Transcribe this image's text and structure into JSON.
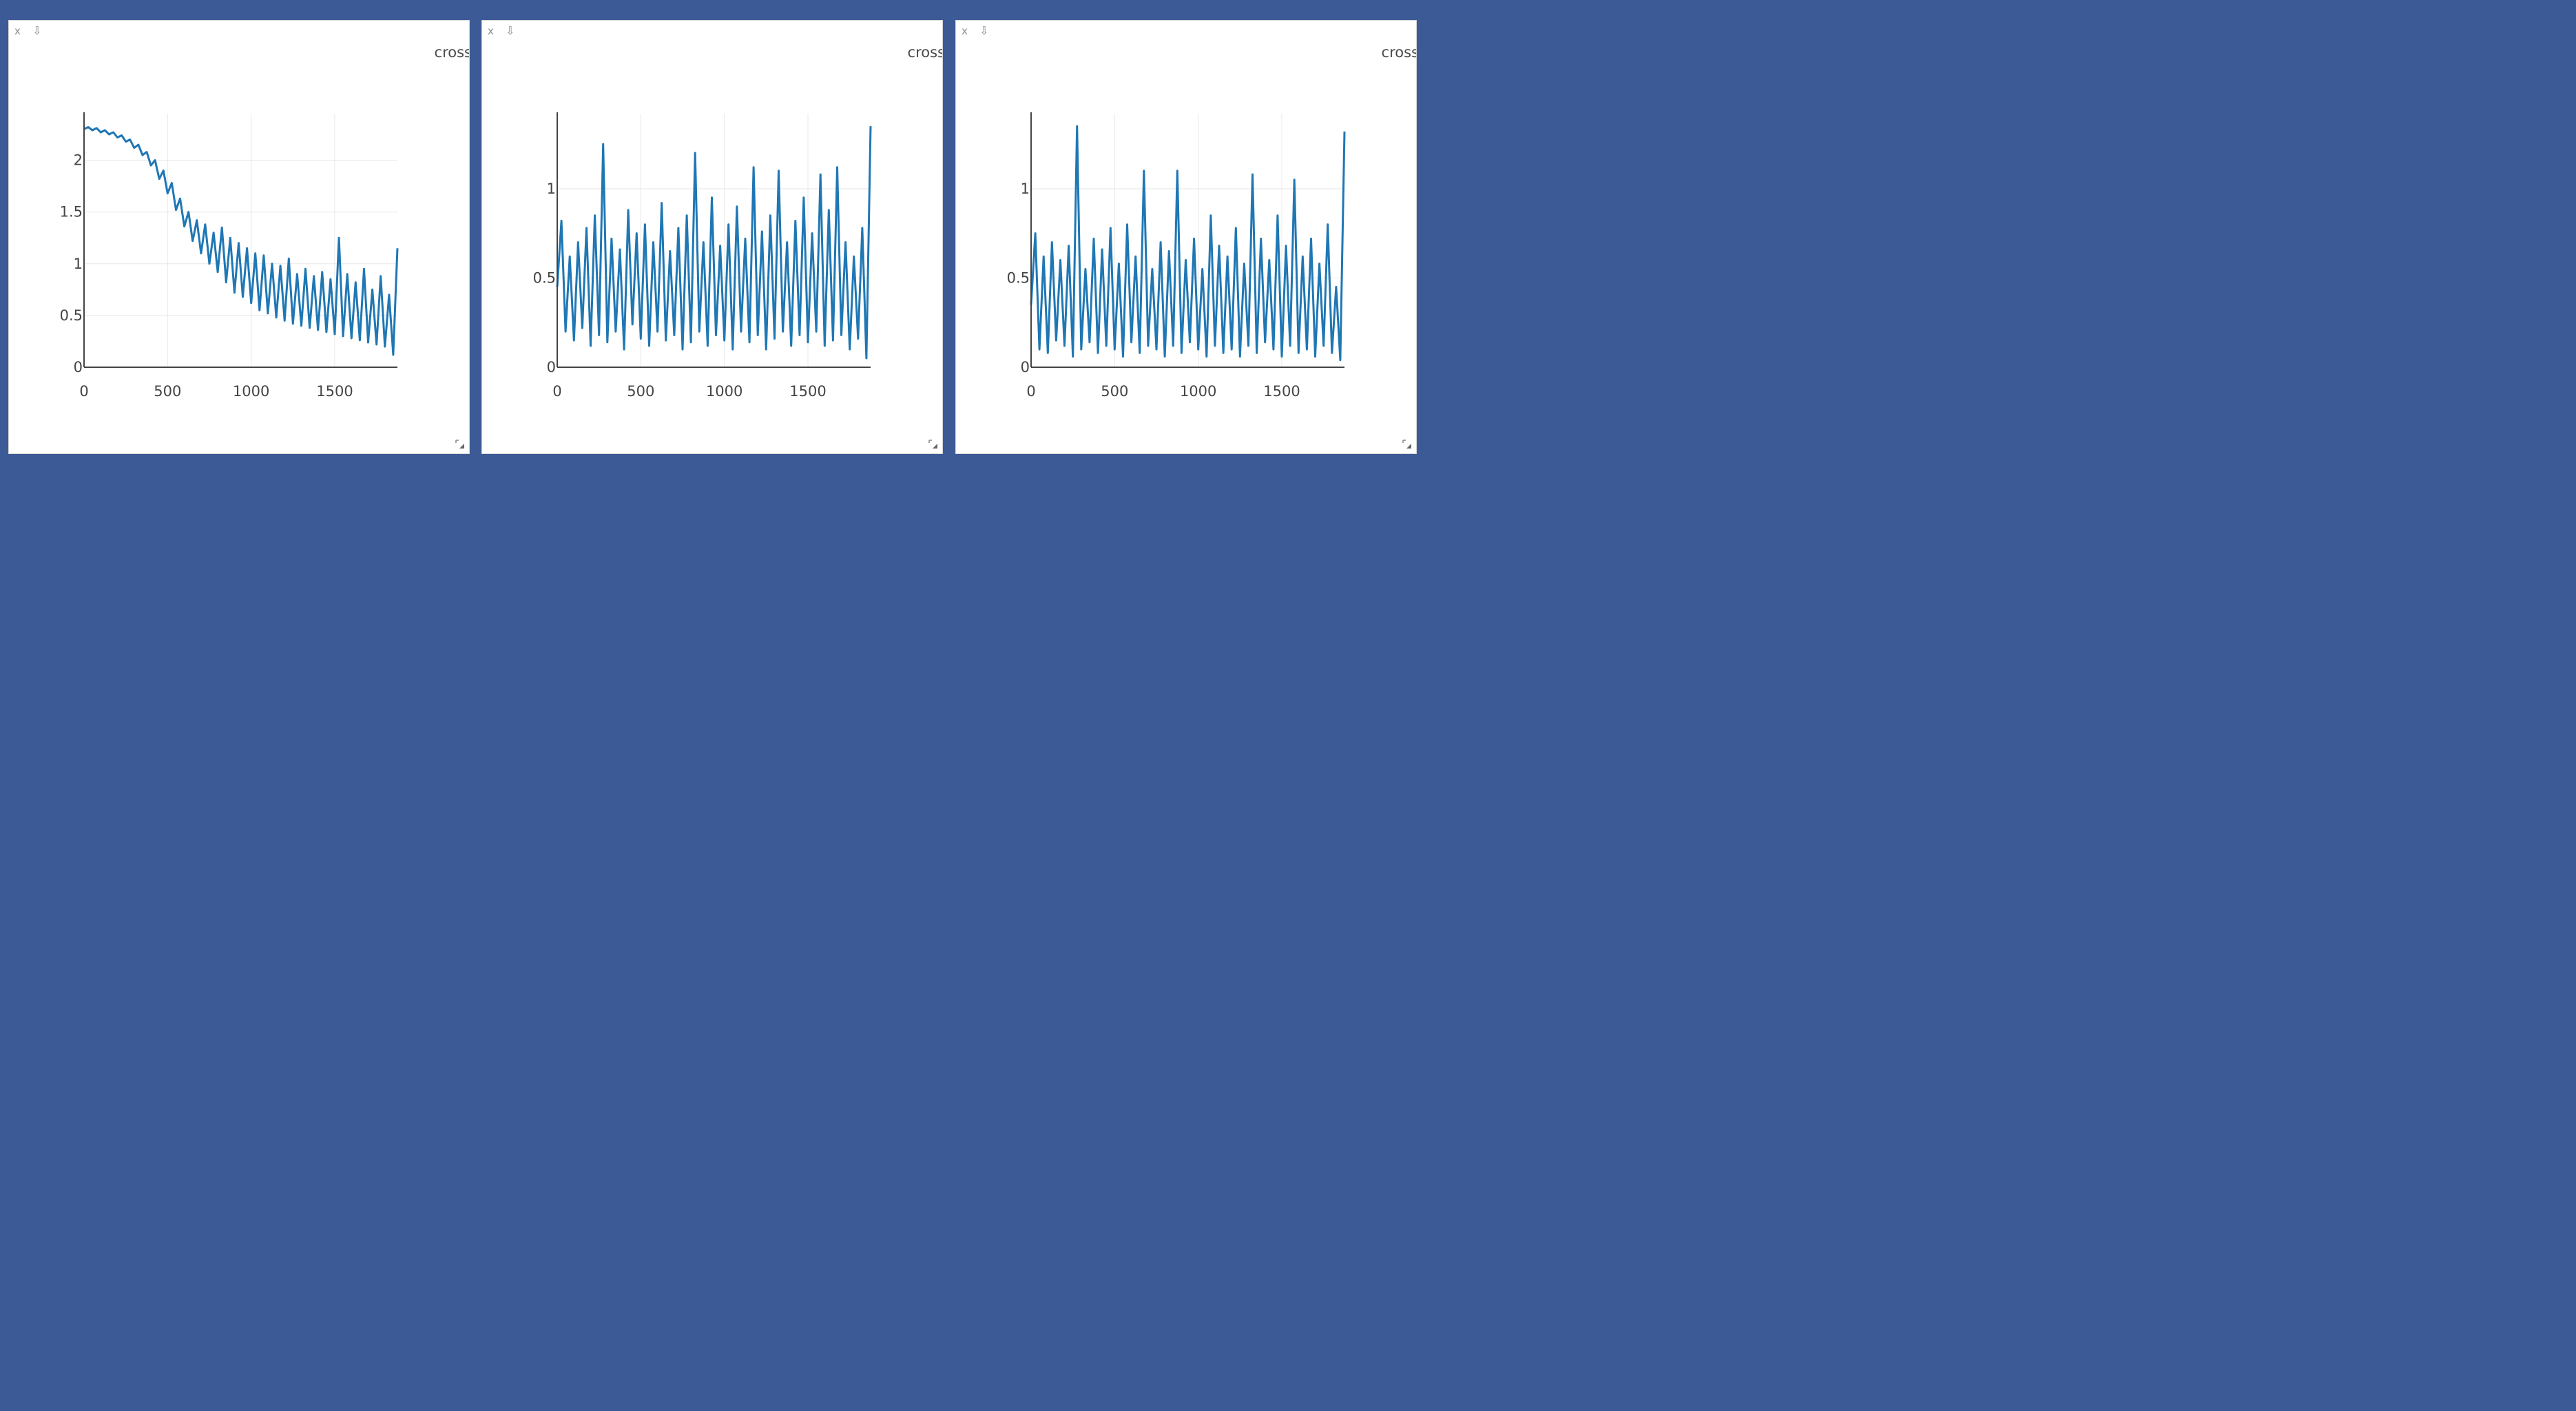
{
  "panes": [
    {
      "title": "cross",
      "close_icon": "close-icon",
      "download_icon": "download-icon",
      "resize_icon": "resize-handle-icon",
      "chart_data": {
        "type": "line",
        "x_range": [
          0,
          1875
        ],
        "ylim": [
          0,
          2.45
        ],
        "x_ticks": [
          0,
          500,
          1000,
          1500
        ],
        "x_tick_labels": [
          "0",
          "500",
          "1000",
          "1500"
        ],
        "y_ticks": [
          0,
          0.5,
          1,
          1.5,
          2
        ],
        "y_tick_labels": [
          "0",
          "0.5",
          "1",
          "1.5",
          "2"
        ],
        "grid": true,
        "line_color": "#1f77b4",
        "series": [
          {
            "x": [
              0,
              25,
              50,
              75,
              100,
              125,
              150,
              175,
              200,
              225,
              250,
              275,
              300,
              325,
              350,
              375,
              400,
              425,
              450,
              475,
              500,
              525,
              550,
              575,
              600,
              625,
              650,
              675,
              700,
              725,
              750,
              775,
              800,
              825,
              850,
              875,
              900,
              925,
              950,
              975,
              1000,
              1025,
              1050,
              1075,
              1100,
              1125,
              1150,
              1175,
              1200,
              1225,
              1250,
              1275,
              1300,
              1325,
              1350,
              1375,
              1400,
              1425,
              1450,
              1475,
              1500,
              1525,
              1550,
              1575,
              1600,
              1625,
              1650,
              1675,
              1700,
              1725,
              1750,
              1775,
              1800,
              1825,
              1850,
              1875
            ],
            "y": [
              2.3,
              2.32,
              2.29,
              2.31,
              2.27,
              2.29,
              2.25,
              2.27,
              2.22,
              2.24,
              2.18,
              2.2,
              2.12,
              2.15,
              2.05,
              2.08,
              1.95,
              2.0,
              1.82,
              1.9,
              1.68,
              1.78,
              1.52,
              1.63,
              1.36,
              1.5,
              1.22,
              1.42,
              1.1,
              1.38,
              1.0,
              1.3,
              0.92,
              1.35,
              0.82,
              1.25,
              0.72,
              1.2,
              0.68,
              1.15,
              0.62,
              1.1,
              0.55,
              1.08,
              0.52,
              1.0,
              0.48,
              0.98,
              0.45,
              1.05,
              0.42,
              0.9,
              0.4,
              0.95,
              0.38,
              0.88,
              0.36,
              0.92,
              0.34,
              0.85,
              0.32,
              1.25,
              0.3,
              0.9,
              0.28,
              0.82,
              0.26,
              0.95,
              0.24,
              0.75,
              0.22,
              0.88,
              0.2,
              0.7,
              0.12,
              1.15
            ]
          }
        ]
      }
    },
    {
      "title": "cross",
      "close_icon": "close-icon",
      "download_icon": "download-icon",
      "resize_icon": "resize-handle-icon",
      "chart_data": {
        "type": "line",
        "x_range": [
          0,
          1875
        ],
        "ylim": [
          0,
          1.42
        ],
        "x_ticks": [
          0,
          500,
          1000,
          1500
        ],
        "x_tick_labels": [
          "0",
          "500",
          "1000",
          "1500"
        ],
        "y_ticks": [
          0,
          0.5,
          1
        ],
        "y_tick_labels": [
          "0",
          "0.5",
          "1"
        ],
        "grid": true,
        "line_color": "#1f77b4",
        "series": [
          {
            "x": [
              0,
              25,
              50,
              75,
              100,
              125,
              150,
              175,
              200,
              225,
              250,
              275,
              300,
              325,
              350,
              375,
              400,
              425,
              450,
              475,
              500,
              525,
              550,
              575,
              600,
              625,
              650,
              675,
              700,
              725,
              750,
              775,
              800,
              825,
              850,
              875,
              900,
              925,
              950,
              975,
              1000,
              1025,
              1050,
              1075,
              1100,
              1125,
              1150,
              1175,
              1200,
              1225,
              1250,
              1275,
              1300,
              1325,
              1350,
              1375,
              1400,
              1425,
              1450,
              1475,
              1500,
              1525,
              1550,
              1575,
              1600,
              1625,
              1650,
              1675,
              1700,
              1725,
              1750,
              1775,
              1800,
              1825,
              1850,
              1875
            ],
            "y": [
              0.45,
              0.82,
              0.2,
              0.62,
              0.15,
              0.7,
              0.22,
              0.78,
              0.12,
              0.85,
              0.18,
              1.25,
              0.14,
              0.72,
              0.2,
              0.66,
              0.1,
              0.88,
              0.24,
              0.75,
              0.16,
              0.8,
              0.12,
              0.7,
              0.2,
              0.92,
              0.15,
              0.65,
              0.18,
              0.78,
              0.1,
              0.85,
              0.14,
              1.2,
              0.2,
              0.7,
              0.12,
              0.95,
              0.18,
              0.68,
              0.15,
              0.8,
              0.1,
              0.9,
              0.2,
              0.72,
              0.14,
              1.12,
              0.18,
              0.76,
              0.1,
              0.85,
              0.16,
              1.1,
              0.2,
              0.7,
              0.12,
              0.82,
              0.18,
              0.95,
              0.14,
              0.75,
              0.2,
              1.08,
              0.12,
              0.88,
              0.15,
              1.12,
              0.18,
              0.7,
              0.1,
              0.62,
              0.16,
              0.78,
              0.05,
              1.35
            ]
          }
        ]
      }
    },
    {
      "title": "cross",
      "close_icon": "close-icon",
      "download_icon": "download-icon",
      "resize_icon": "resize-handle-icon",
      "chart_data": {
        "type": "line",
        "x_range": [
          0,
          1875
        ],
        "ylim": [
          0,
          1.42
        ],
        "x_ticks": [
          0,
          500,
          1000,
          1500
        ],
        "x_tick_labels": [
          "0",
          "500",
          "1000",
          "1500"
        ],
        "y_ticks": [
          0,
          0.5,
          1
        ],
        "y_tick_labels": [
          "0",
          "0.5",
          "1"
        ],
        "grid": true,
        "line_color": "#1f77b4",
        "series": [
          {
            "x": [
              0,
              25,
              50,
              75,
              100,
              125,
              150,
              175,
              200,
              225,
              250,
              275,
              300,
              325,
              350,
              375,
              400,
              425,
              450,
              475,
              500,
              525,
              550,
              575,
              600,
              625,
              650,
              675,
              700,
              725,
              750,
              775,
              800,
              825,
              850,
              875,
              900,
              925,
              950,
              975,
              1000,
              1025,
              1050,
              1075,
              1100,
              1125,
              1150,
              1175,
              1200,
              1225,
              1250,
              1275,
              1300,
              1325,
              1350,
              1375,
              1400,
              1425,
              1450,
              1475,
              1500,
              1525,
              1550,
              1575,
              1600,
              1625,
              1650,
              1675,
              1700,
              1725,
              1750,
              1775,
              1800,
              1825,
              1850,
              1875
            ],
            "y": [
              0.35,
              0.75,
              0.1,
              0.62,
              0.08,
              0.7,
              0.15,
              0.6,
              0.12,
              0.68,
              0.06,
              1.35,
              0.1,
              0.55,
              0.14,
              0.72,
              0.08,
              0.66,
              0.12,
              0.78,
              0.1,
              0.58,
              0.06,
              0.8,
              0.14,
              0.62,
              0.08,
              1.1,
              0.12,
              0.55,
              0.1,
              0.7,
              0.06,
              0.65,
              0.12,
              1.1,
              0.08,
              0.6,
              0.14,
              0.72,
              0.1,
              0.55,
              0.06,
              0.85,
              0.12,
              0.68,
              0.08,
              0.62,
              0.1,
              0.78,
              0.06,
              0.58,
              0.12,
              1.08,
              0.08,
              0.72,
              0.14,
              0.6,
              0.1,
              0.85,
              0.06,
              0.68,
              0.12,
              1.05,
              0.08,
              0.62,
              0.1,
              0.72,
              0.06,
              0.58,
              0.12,
              0.8,
              0.08,
              0.45,
              0.04,
              1.32
            ]
          }
        ]
      }
    }
  ]
}
